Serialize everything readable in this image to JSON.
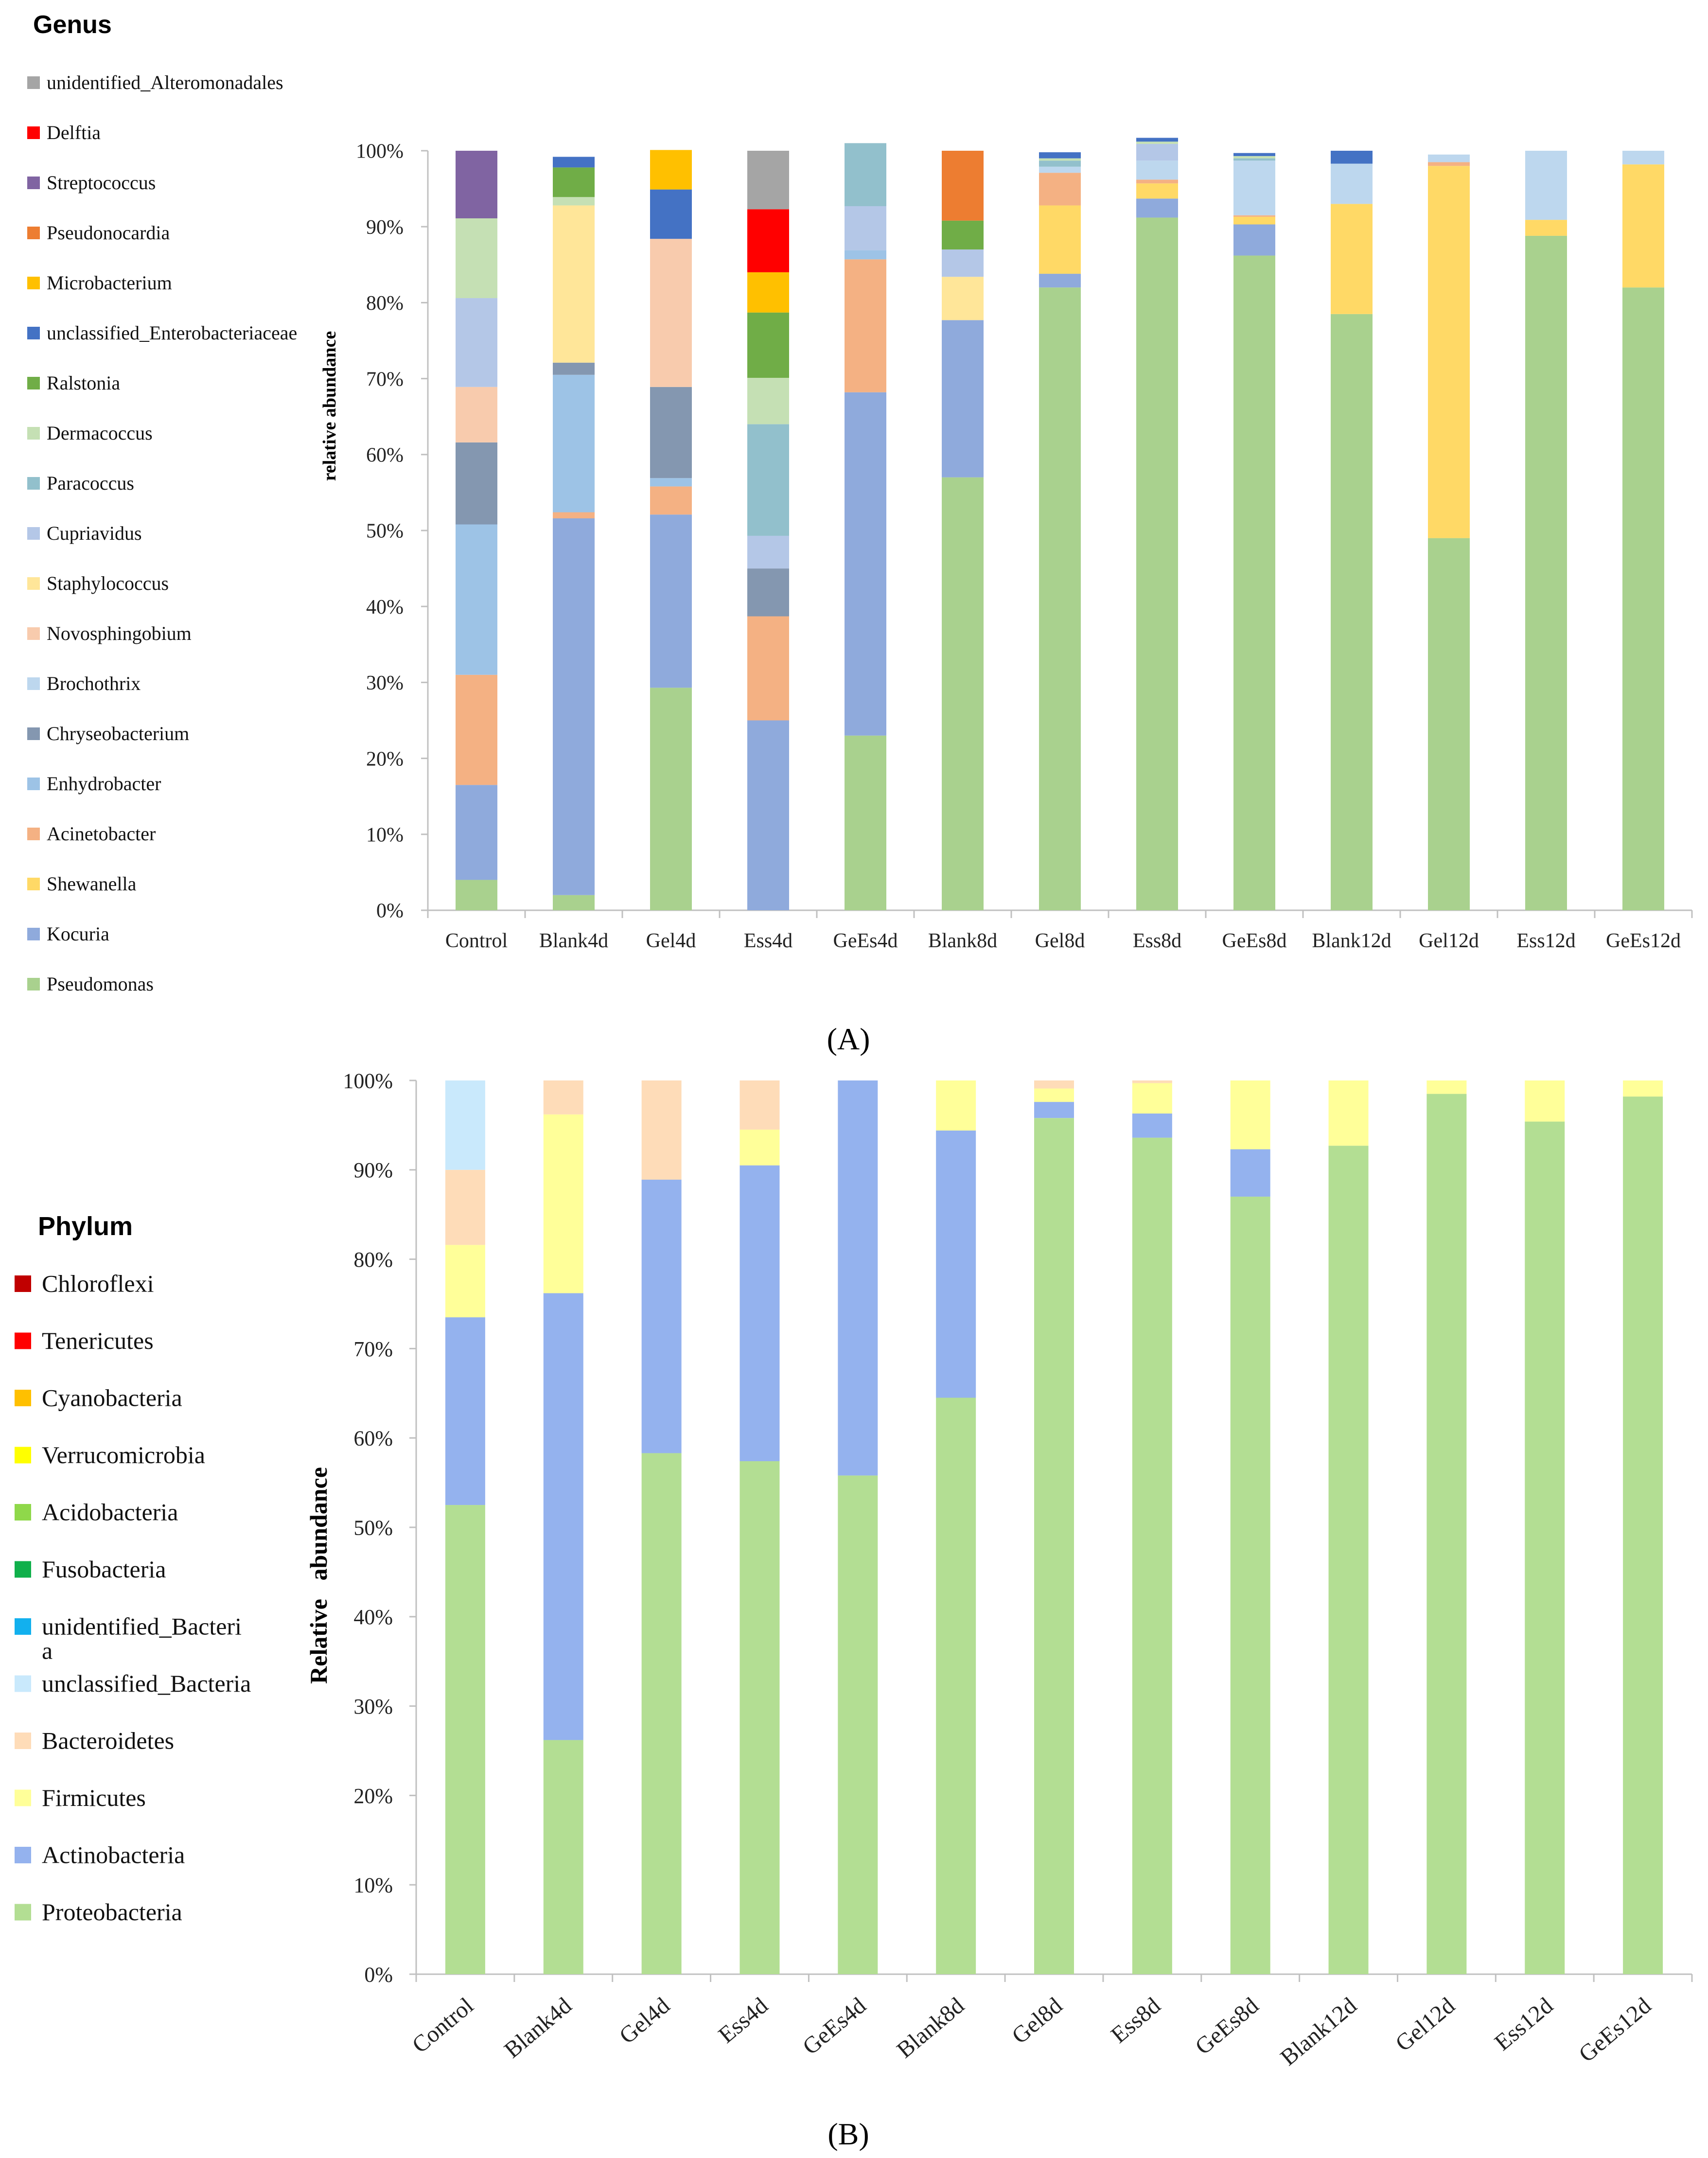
{
  "figure": {
    "panel_a_label": "(A)",
    "panel_b_label": "(B)"
  },
  "chart_data": [
    {
      "type": "bar",
      "stacked": true,
      "panel": "A",
      "title": "",
      "legend_title": "Genus",
      "xlabel": "",
      "ylabel": "relative abundance",
      "ylim": [
        0,
        100
      ],
      "ytick_labels": [
        "0%",
        "10%",
        "20%",
        "30%",
        "40%",
        "50%",
        "60%",
        "70%",
        "80%",
        "90%",
        "100%"
      ],
      "legend_position": "left",
      "grid": false,
      "categories": [
        "Control",
        "Blank4d",
        "Gel4d",
        "Ess4d",
        "GeEs4d",
        "Blank8d",
        "Gel8d",
        "Ess8d",
        "GeEs8d",
        "Blank12d",
        "Gel12d",
        "Ess12d",
        "GeEs12d"
      ],
      "series": [
        {
          "name": "Pseudomonas",
          "color": "#a9d18e",
          "values": [
            4,
            2,
            29.3,
            0,
            23,
            57,
            82,
            91.2,
            86.2,
            78.5,
            49,
            88.8,
            82
          ]
        },
        {
          "name": "Kocuria",
          "color": "#8faadc",
          "values": [
            12.5,
            49.6,
            22.8,
            25,
            45.2,
            20.7,
            1.8,
            2.5,
            4.1,
            0,
            0,
            0,
            0
          ]
        },
        {
          "name": "Shewanella",
          "color": "#ffd966",
          "values": [
            0,
            0,
            0,
            0,
            0,
            0,
            9,
            2,
            1,
            14.5,
            49,
            2.1,
            16.2
          ]
        },
        {
          "name": "Acinetobacter",
          "color": "#f4b183",
          "values": [
            14.5,
            0.8,
            3.7,
            13.7,
            17.5,
            0,
            4.3,
            0.5,
            0.2,
            0,
            0.5,
            0,
            0
          ]
        },
        {
          "name": "Enhydrobacter",
          "color": "#9dc3e6",
          "values": [
            19.8,
            18.1,
            1.1,
            0,
            1.2,
            0,
            0,
            0,
            0,
            0,
            0,
            0,
            0
          ]
        },
        {
          "name": "Chryseobacterium",
          "color": "#8497b0",
          "values": [
            10.8,
            1.6,
            12,
            6.3,
            0,
            0,
            0,
            0,
            0,
            0,
            0,
            0,
            0
          ]
        },
        {
          "name": "Brochothrix",
          "color": "#bdd7ee",
          "values": [
            0,
            0,
            0,
            0,
            0,
            0,
            0.8,
            2.5,
            7.2,
            5.3,
            1,
            9.1,
            1.8
          ]
        },
        {
          "name": "Novosphingobium",
          "color": "#f8cbad",
          "values": [
            7.3,
            0,
            19.5,
            0,
            0,
            0,
            0,
            0,
            0,
            0,
            0,
            0,
            0
          ]
        },
        {
          "name": "Staphylococcus",
          "color": "#ffe699",
          "values": [
            0,
            20.7,
            0,
            0,
            0,
            5.7,
            0,
            0,
            0,
            0,
            0,
            0,
            0
          ]
        },
        {
          "name": "Cupriavidus",
          "color": "#b4c7e7",
          "values": [
            11.7,
            0,
            0,
            4.3,
            5.8,
            3.6,
            0,
            2.2,
            0,
            0,
            0,
            0,
            0
          ]
        },
        {
          "name": "Paracoccus",
          "color": "#92c0cc",
          "values": [
            0,
            0,
            0,
            14.7,
            8.3,
            0,
            0.8,
            0,
            0.3,
            0,
            0,
            0,
            0
          ]
        },
        {
          "name": "Dermacoccus",
          "color": "#c5e0b4",
          "values": [
            10.5,
            1.1,
            0,
            6.1,
            0,
            0,
            0.3,
            0.3,
            0.3,
            0,
            0,
            0,
            0
          ]
        },
        {
          "name": "Ralstonia",
          "color": "#70ad47",
          "values": [
            0,
            3.9,
            0,
            8.6,
            0,
            3.8,
            0,
            0,
            0,
            0,
            0,
            0,
            0
          ]
        },
        {
          "name": "unclassified_Enterobacteriaceae",
          "color": "#4472c4",
          "values": [
            0,
            1.4,
            6.5,
            0,
            0,
            0,
            0.8,
            0.5,
            0.4,
            1.7,
            0,
            0,
            0
          ]
        },
        {
          "name": "Microbacterium",
          "color": "#ffc000",
          "values": [
            0,
            0,
            5.2,
            5.3,
            0,
            0,
            0,
            0,
            0,
            0,
            0,
            0,
            0
          ]
        },
        {
          "name": "Pseudonocardia",
          "color": "#ed7d31",
          "values": [
            0,
            0,
            0,
            0,
            0,
            9.2,
            0,
            0,
            0,
            0,
            0,
            0,
            0
          ]
        },
        {
          "name": "Streptococcus",
          "color": "#8064a2",
          "values": [
            8.9,
            0,
            0,
            0,
            0,
            0,
            0,
            0,
            0,
            0,
            0,
            0,
            0
          ]
        },
        {
          "name": "Delftia",
          "color": "#ff0000",
          "values": [
            0,
            0,
            0,
            8.3,
            0,
            0,
            0,
            0,
            0,
            0,
            0,
            0,
            0
          ]
        },
        {
          "name": "unidentified_Alteromonadales",
          "color": "#a5a5a5",
          "values": [
            0,
            0,
            0,
            7.7,
            0,
            0,
            0,
            0,
            0,
            0,
            0,
            0,
            0
          ]
        }
      ]
    },
    {
      "type": "bar",
      "stacked": true,
      "panel": "B",
      "title": "",
      "legend_title": "Phylum",
      "xlabel": "",
      "ylabel": "Relative   abundance",
      "ylim": [
        0,
        100
      ],
      "ytick_labels": [
        "0%",
        "10%",
        "20%",
        "30%",
        "40%",
        "50%",
        "60%",
        "70%",
        "80%",
        "90%",
        "100%"
      ],
      "legend_position": "left",
      "grid": false,
      "categories": [
        "Control",
        "Blank4d",
        "Gel4d",
        "Ess4d",
        "GeEs4d",
        "Blank8d",
        "Gel8d",
        "Ess8d",
        "GeEs8d",
        "Blank12d",
        "Gel12d",
        "Ess12d",
        "GeEs12d"
      ],
      "series": [
        {
          "name": "Proteobacteria",
          "color": "#b3de93",
          "values": [
            52.5,
            26.2,
            58.3,
            57.4,
            55.8,
            64.5,
            95.8,
            93.6,
            87,
            92.7,
            98.5,
            95.4,
            98.2
          ]
        },
        {
          "name": "Actinobacteria",
          "color": "#94b2ee",
          "values": [
            21,
            50,
            30.6,
            33.1,
            44.2,
            29.9,
            1.8,
            2.7,
            5.3,
            0,
            0,
            0,
            0
          ]
        },
        {
          "name": "Firmicutes",
          "color": "#ffff99",
          "values": [
            8.1,
            20,
            0,
            4,
            0,
            5.6,
            1.5,
            3.4,
            7.7,
            7.3,
            1.5,
            4.6,
            1.8
          ]
        },
        {
          "name": "Bacteroidetes",
          "color": "#fedcb8",
          "values": [
            8.4,
            3.8,
            11.1,
            5.5,
            0,
            0,
            0.9,
            0.3,
            0,
            0,
            0,
            0,
            0
          ]
        },
        {
          "name": "unclassified_Bacteria",
          "color": "#c9e9fc",
          "values": [
            10,
            0,
            0,
            0,
            0,
            0,
            0,
            0,
            0,
            0,
            0,
            0,
            0
          ]
        },
        {
          "name": "unidentified_Bacteri\na",
          "color": "#12b0ee",
          "values": [
            0,
            0,
            0,
            0,
            0,
            0,
            0,
            0,
            0,
            0,
            0,
            0,
            0
          ]
        },
        {
          "name": "Fusobacteria",
          "color": "#10b04b",
          "values": [
            0,
            0,
            0,
            0,
            0,
            0,
            0,
            0,
            0,
            0,
            0,
            0,
            0
          ]
        },
        {
          "name": "Acidobacteria",
          "color": "#8fd84a",
          "values": [
            0,
            0,
            0,
            0,
            0,
            0,
            0,
            0,
            0,
            0,
            0,
            0,
            0
          ]
        },
        {
          "name": "Verrucomicrobia",
          "color": "#ffff00",
          "values": [
            0,
            0,
            0,
            0,
            0,
            0,
            0,
            0,
            0,
            0,
            0,
            0,
            0
          ]
        },
        {
          "name": "Cyanobacteria",
          "color": "#ffc000",
          "values": [
            0,
            0,
            0,
            0,
            0,
            0,
            0,
            0,
            0,
            0,
            0,
            0,
            0
          ]
        },
        {
          "name": "Tenericutes",
          "color": "#ff0000",
          "values": [
            0,
            0,
            0,
            0,
            0,
            0,
            0,
            0,
            0,
            0,
            0,
            0,
            0
          ]
        },
        {
          "name": "Chloroflexi",
          "color": "#c00000",
          "values": [
            0,
            0,
            0,
            0,
            0,
            0,
            0,
            0,
            0,
            0,
            0,
            0,
            0
          ]
        }
      ]
    }
  ]
}
